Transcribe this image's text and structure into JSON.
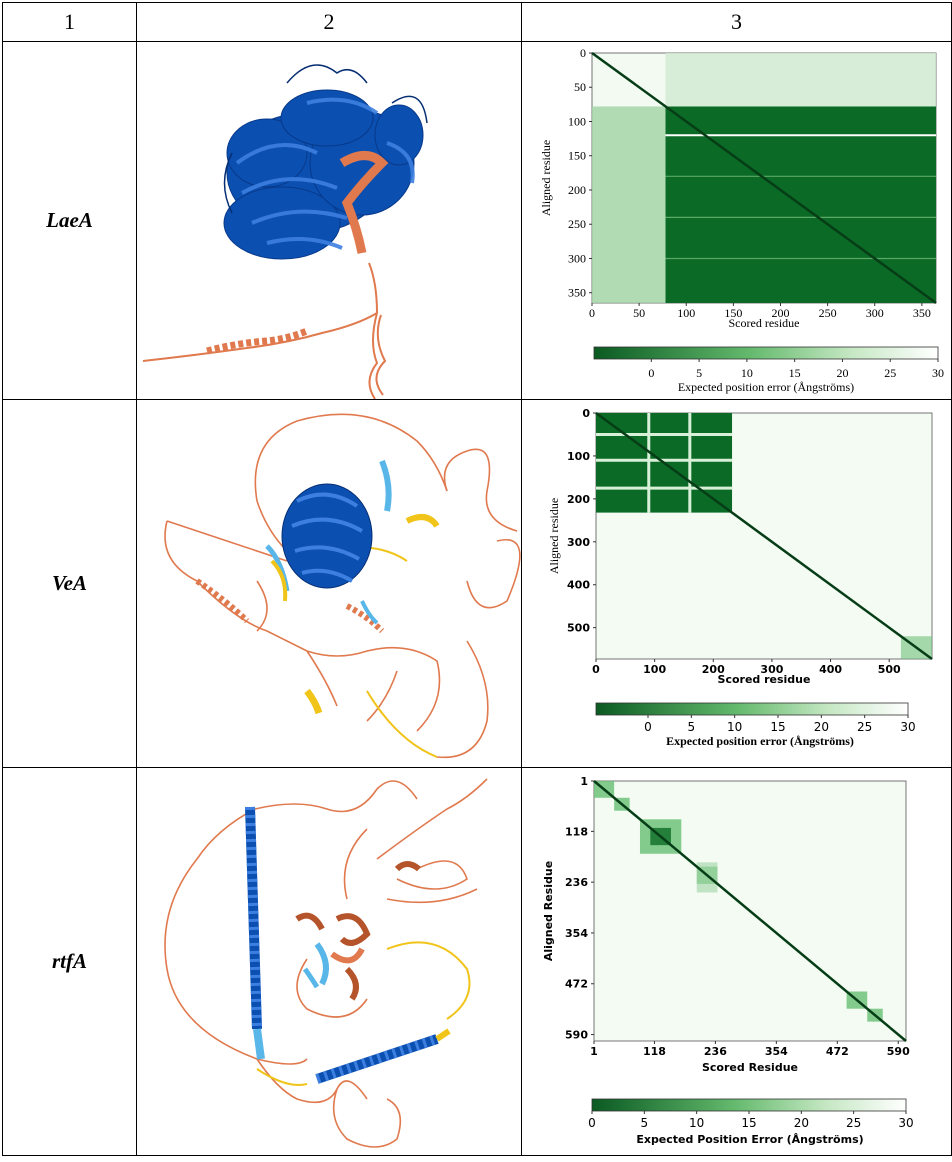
{
  "table": {
    "columns": [
      "1",
      "2",
      "3"
    ],
    "rows": [
      {
        "gene": "LaeA",
        "structure_icon": "protein-structure-laea-icon"
      },
      {
        "gene": "VeA",
        "structure_icon": "protein-structure-vea-icon"
      },
      {
        "gene": "rtfA",
        "structure_icon": "protein-structure-rtfa-icon"
      }
    ]
  },
  "colors": {
    "dark_green": "#0b6b26",
    "mid_green": "#6fc27a",
    "pale_green": "#e6f5e6",
    "very_high": "#0b4fb0",
    "confident": "#59b6e8",
    "low": "#f0c419",
    "very_low": "#e07a4e"
  },
  "chart_data": [
    {
      "type": "heatmap",
      "name": "LaeA PAE",
      "xlabel": "Scored residue",
      "ylabel": "Aligned residue",
      "xticks": [
        "0",
        "50",
        "100",
        "150",
        "200",
        "250",
        "300",
        "350"
      ],
      "yticks": [
        "0",
        "50",
        "100",
        "150",
        "200",
        "250",
        "300",
        "350"
      ],
      "tick_values": [
        0,
        50,
        100,
        150,
        200,
        250,
        300,
        350
      ],
      "range": [
        0,
        365
      ],
      "dark_block_start": 78,
      "colorbar_label": "Expected position error (Ångströms)",
      "colorbar_ticks": [
        "0",
        "5",
        "10",
        "15",
        "20",
        "25",
        "30"
      ]
    },
    {
      "type": "heatmap",
      "name": "VeA PAE",
      "xlabel": "Scored residue",
      "ylabel": "Aligned residue",
      "xticks": [
        "0",
        "100",
        "200",
        "300",
        "400",
        "500"
      ],
      "yticks": [
        "0",
        "100",
        "200",
        "300",
        "400",
        "500"
      ],
      "tick_values": [
        0,
        100,
        200,
        300,
        400,
        500
      ],
      "range": [
        0,
        573
      ],
      "dark_block_end": 232,
      "colorbar_label": "Expected position error (Ångströms)",
      "colorbar_ticks": [
        "0",
        "5",
        "10",
        "15",
        "20",
        "25",
        "30"
      ]
    },
    {
      "type": "heatmap",
      "name": "rtfA PAE",
      "xlabel": "Scored Residue",
      "ylabel": "Aligned Residue",
      "xticks": [
        "1",
        "118",
        "236",
        "354",
        "472",
        "590"
      ],
      "yticks": [
        "1",
        "118",
        "236",
        "354",
        "472",
        "590"
      ],
      "tick_values": [
        1,
        118,
        236,
        354,
        472,
        590
      ],
      "range": [
        1,
        605
      ],
      "colorbar_label": "Expected Position Error (Ångströms)",
      "colorbar_ticks": [
        "0",
        "5",
        "10",
        "15",
        "20",
        "25",
        "30"
      ]
    }
  ]
}
